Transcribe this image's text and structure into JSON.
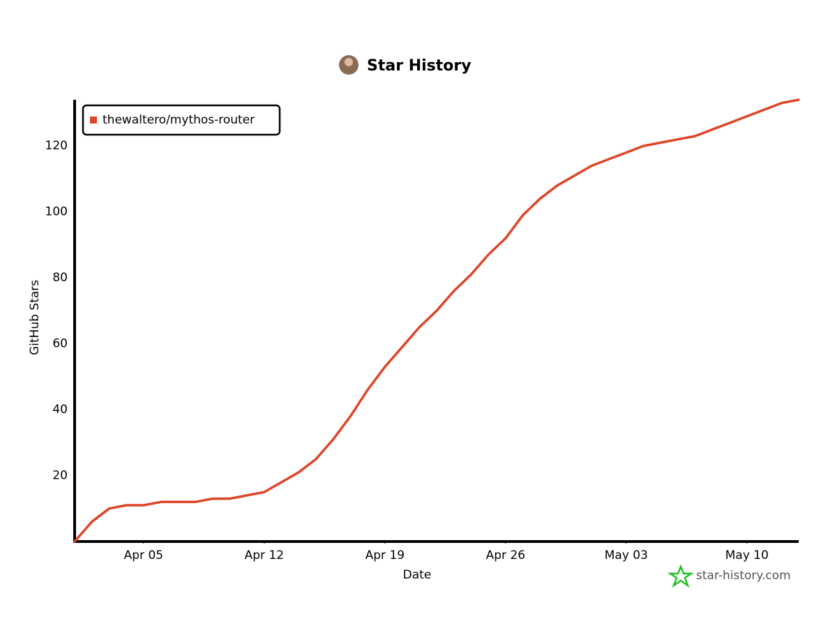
{
  "chart_data": {
    "type": "line",
    "title": "Star History",
    "xlabel": "Date",
    "ylabel": "GitHub Stars",
    "watermark": "star-history.com",
    "x": [
      "Apr 01",
      "Apr 02",
      "Apr 03",
      "Apr 04",
      "Apr 05",
      "Apr 06",
      "Apr 07",
      "Apr 08",
      "Apr 09",
      "Apr 10",
      "Apr 11",
      "Apr 12",
      "Apr 13",
      "Apr 14",
      "Apr 15",
      "Apr 16",
      "Apr 17",
      "Apr 18",
      "Apr 19",
      "Apr 20",
      "Apr 21",
      "Apr 22",
      "Apr 23",
      "Apr 24",
      "Apr 25",
      "Apr 26",
      "Apr 27",
      "Apr 28",
      "Apr 29",
      "Apr 30",
      "May 01",
      "May 02",
      "May 03",
      "May 04",
      "May 05",
      "May 06",
      "May 07",
      "May 08",
      "May 09",
      "May 10",
      "May 11",
      "May 12",
      "May 13"
    ],
    "series": [
      {
        "name": "thewaltero/mythos-router",
        "color": "#dd4528",
        "values": [
          0,
          6,
          10,
          11,
          11,
          12,
          12,
          12,
          13,
          13,
          14,
          15,
          18,
          21,
          25,
          31,
          38,
          46,
          53,
          59,
          65,
          70,
          76,
          81,
          87,
          92,
          99,
          104,
          108,
          111,
          114,
          116,
          118,
          120,
          121,
          122,
          123,
          125,
          127,
          129,
          131,
          133,
          134
        ]
      }
    ],
    "xlim": [
      "Apr 01",
      "May 13"
    ],
    "xticks": [
      "Apr 05",
      "Apr 12",
      "Apr 19",
      "Apr 26",
      "May 03",
      "May 10"
    ],
    "ylim": [
      0,
      134
    ],
    "yticks": [
      20,
      40,
      60,
      80,
      100,
      120
    ],
    "legend": "top-left",
    "grid": false
  }
}
